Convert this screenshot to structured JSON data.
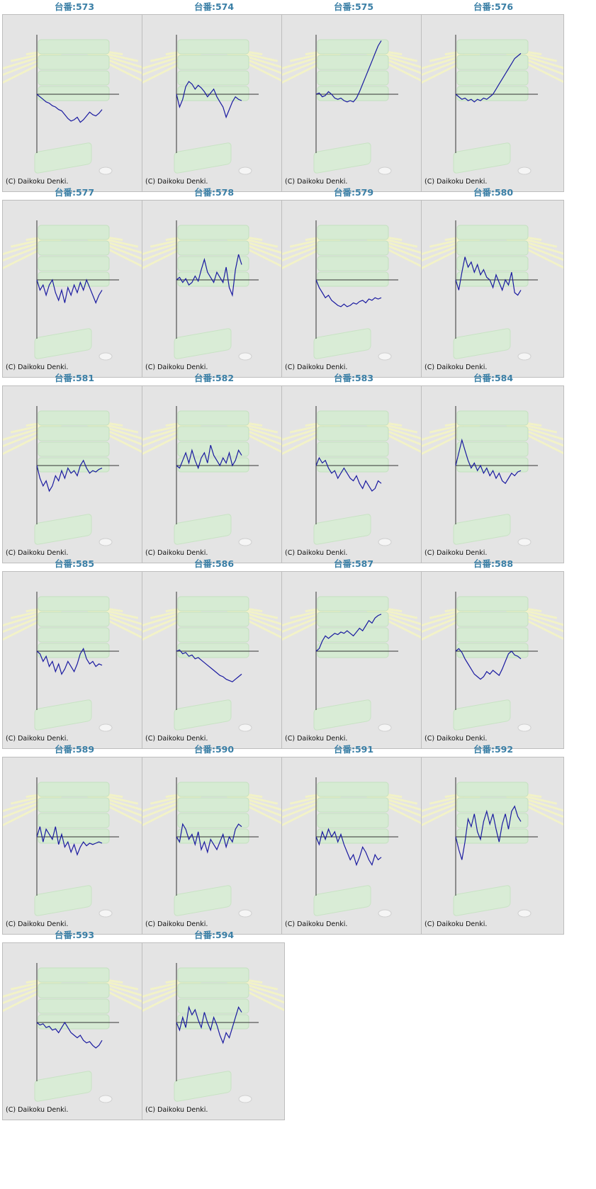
{
  "copyright": "(C) Daikoku Denki.",
  "colors": {
    "title": "#3a7fa6",
    "line": "#1a1aa0",
    "axis": "#333333",
    "panel_bg": "#e4e4e4"
  },
  "chart_data": [
    {
      "type": "line",
      "title": "台番:573",
      "y": [
        0,
        -0.1,
        -0.2,
        -0.3,
        -0.35,
        -0.45,
        -0.5,
        -0.6,
        -0.65,
        -0.8,
        -0.95,
        -1.05,
        -1.0,
        -0.9,
        -1.1,
        -1.0,
        -0.85,
        -0.7,
        -0.8,
        -0.85,
        -0.75,
        -0.6
      ]
    },
    {
      "type": "line",
      "title": "台番:574",
      "y": [
        0,
        -0.5,
        -0.2,
        0.3,
        0.5,
        0.4,
        0.2,
        0.35,
        0.25,
        0.1,
        -0.1,
        0.05,
        0.2,
        -0.1,
        -0.3,
        -0.5,
        -0.9,
        -0.6,
        -0.3,
        -0.1,
        -0.2,
        -0.25
      ]
    },
    {
      "type": "line",
      "title": "台番:575",
      "y": [
        0,
        0.05,
        -0.1,
        -0.05,
        0.1,
        0.0,
        -0.15,
        -0.2,
        -0.15,
        -0.25,
        -0.3,
        -0.25,
        -0.3,
        -0.15,
        0.1,
        0.4,
        0.7,
        1.0,
        1.3,
        1.6,
        1.9,
        2.1
      ]
    },
    {
      "type": "line",
      "title": "台番:576",
      "y": [
        0,
        -0.1,
        -0.2,
        -0.15,
        -0.25,
        -0.2,
        -0.3,
        -0.2,
        -0.25,
        -0.15,
        -0.2,
        -0.1,
        0.0,
        0.2,
        0.4,
        0.6,
        0.8,
        1.0,
        1.2,
        1.4,
        1.5,
        1.6
      ]
    },
    {
      "type": "line",
      "title": "台番:577",
      "y": [
        0,
        -0.4,
        -0.2,
        -0.6,
        -0.2,
        0,
        -0.5,
        -0.8,
        -0.4,
        -0.9,
        -0.3,
        -0.6,
        -0.2,
        -0.5,
        -0.1,
        -0.4,
        0,
        -0.3,
        -0.6,
        -0.9,
        -0.6,
        -0.4
      ]
    },
    {
      "type": "line",
      "title": "台番:578",
      "y": [
        0,
        0.1,
        -0.1,
        0.05,
        -0.2,
        -0.1,
        0.15,
        -0.05,
        0.4,
        0.8,
        0.3,
        0.1,
        -0.1,
        0.3,
        0.1,
        -0.1,
        0.5,
        -0.3,
        -0.6,
        0.4,
        1.0,
        0.6
      ]
    },
    {
      "type": "line",
      "title": "台番:579",
      "y": [
        0,
        -0.3,
        -0.5,
        -0.7,
        -0.6,
        -0.8,
        -0.9,
        -1.0,
        -1.05,
        -0.95,
        -1.05,
        -1.0,
        -0.9,
        -0.95,
        -0.85,
        -0.8,
        -0.9,
        -0.75,
        -0.8,
        -0.7,
        -0.75,
        -0.7
      ]
    },
    {
      "type": "line",
      "title": "台番:580",
      "y": [
        0,
        -0.4,
        0.3,
        0.9,
        0.5,
        0.7,
        0.3,
        0.6,
        0.2,
        0.4,
        0.1,
        0,
        -0.3,
        0.2,
        -0.1,
        -0.4,
        0,
        -0.2,
        0.3,
        -0.5,
        -0.6,
        -0.4
      ]
    },
    {
      "type": "line",
      "title": "台番:581",
      "y": [
        0,
        -0.5,
        -0.8,
        -0.6,
        -1.0,
        -0.8,
        -0.4,
        -0.6,
        -0.2,
        -0.5,
        -0.1,
        -0.3,
        -0.2,
        -0.4,
        0.0,
        0.2,
        -0.1,
        -0.3,
        -0.2,
        -0.25,
        -0.15,
        -0.1
      ]
    },
    {
      "type": "line",
      "title": "台番:582",
      "y": [
        0,
        -0.1,
        0.2,
        0.5,
        0.1,
        0.6,
        0.2,
        -0.1,
        0.3,
        0.5,
        0.1,
        0.8,
        0.4,
        0.2,
        0.0,
        0.3,
        0.1,
        0.5,
        0.0,
        0.2,
        0.6,
        0.4
      ]
    },
    {
      "type": "line",
      "title": "台番:583",
      "y": [
        0,
        0.3,
        0.1,
        0.2,
        -0.1,
        -0.3,
        -0.2,
        -0.5,
        -0.3,
        -0.1,
        -0.3,
        -0.5,
        -0.6,
        -0.4,
        -0.7,
        -0.9,
        -0.6,
        -0.8,
        -1.0,
        -0.9,
        -0.6,
        -0.7
      ]
    },
    {
      "type": "line",
      "title": "台番:584",
      "y": [
        0,
        0.5,
        1.0,
        0.6,
        0.2,
        -0.1,
        0.1,
        -0.2,
        0.0,
        -0.3,
        -0.1,
        -0.4,
        -0.2,
        -0.5,
        -0.3,
        -0.6,
        -0.7,
        -0.5,
        -0.3,
        -0.4,
        -0.25,
        -0.2
      ]
    },
    {
      "type": "line",
      "title": "台番:585",
      "y": [
        0,
        -0.1,
        -0.4,
        -0.2,
        -0.6,
        -0.4,
        -0.8,
        -0.5,
        -0.9,
        -0.7,
        -0.4,
        -0.6,
        -0.8,
        -0.5,
        -0.1,
        0.1,
        -0.3,
        -0.5,
        -0.4,
        -0.6,
        -0.5,
        -0.55
      ]
    },
    {
      "type": "line",
      "title": "台番:586",
      "y": [
        0,
        0.05,
        -0.1,
        -0.05,
        -0.2,
        -0.15,
        -0.3,
        -0.25,
        -0.35,
        -0.45,
        -0.55,
        -0.65,
        -0.75,
        -0.85,
        -0.95,
        -1.0,
        -1.1,
        -1.15,
        -1.2,
        -1.1,
        -1.0,
        -0.9
      ]
    },
    {
      "type": "line",
      "title": "台番:587",
      "y": [
        0,
        0.1,
        0.4,
        0.6,
        0.5,
        0.6,
        0.7,
        0.65,
        0.75,
        0.7,
        0.8,
        0.7,
        0.6,
        0.75,
        0.9,
        0.8,
        1.0,
        1.2,
        1.1,
        1.3,
        1.4,
        1.45
      ]
    },
    {
      "type": "line",
      "title": "台番:588",
      "y": [
        0,
        0.1,
        -0.05,
        -0.3,
        -0.5,
        -0.7,
        -0.9,
        -1.0,
        -1.1,
        -1.0,
        -0.8,
        -0.9,
        -0.75,
        -0.85,
        -0.95,
        -0.7,
        -0.4,
        -0.1,
        0.0,
        -0.15,
        -0.2,
        -0.3
      ]
    },
    {
      "type": "line",
      "title": "台番:589",
      "y": [
        0,
        0.4,
        -0.2,
        0.3,
        0.1,
        -0.1,
        0.4,
        -0.3,
        0.1,
        -0.4,
        -0.2,
        -0.6,
        -0.3,
        -0.7,
        -0.4,
        -0.2,
        -0.35,
        -0.25,
        -0.3,
        -0.25,
        -0.2,
        -0.25
      ]
    },
    {
      "type": "line",
      "title": "台番:590",
      "y": [
        0,
        -0.2,
        0.5,
        0.3,
        -0.1,
        0.1,
        -0.3,
        0.2,
        -0.5,
        -0.2,
        -0.6,
        -0.1,
        -0.3,
        -0.5,
        -0.2,
        0.1,
        -0.4,
        0.0,
        -0.2,
        0.3,
        0.5,
        0.4
      ]
    },
    {
      "type": "line",
      "title": "台番:591",
      "y": [
        0,
        -0.3,
        0.2,
        -0.1,
        0.3,
        0.0,
        0.2,
        -0.2,
        0.1,
        -0.3,
        -0.6,
        -0.9,
        -0.7,
        -1.1,
        -0.8,
        -0.4,
        -0.6,
        -0.9,
        -1.1,
        -0.7,
        -0.9,
        -0.8
      ]
    },
    {
      "type": "line",
      "title": "台番:592",
      "y": [
        0,
        -0.5,
        -0.9,
        -0.2,
        0.7,
        0.4,
        0.9,
        0.2,
        -0.1,
        0.6,
        1.0,
        0.5,
        0.9,
        0.3,
        -0.2,
        0.5,
        0.9,
        0.3,
        1.0,
        1.2,
        0.8,
        0.6
      ]
    },
    {
      "type": "line",
      "title": "台番:593",
      "y": [
        0,
        -0.1,
        -0.05,
        -0.2,
        -0.15,
        -0.3,
        -0.25,
        -0.4,
        -0.2,
        0.0,
        -0.2,
        -0.4,
        -0.5,
        -0.6,
        -0.5,
        -0.7,
        -0.8,
        -0.75,
        -0.9,
        -1.0,
        -0.9,
        -0.7
      ]
    },
    {
      "type": "line",
      "title": "台番:594",
      "y": [
        0,
        -0.3,
        0.2,
        -0.2,
        0.6,
        0.3,
        0.5,
        0.1,
        -0.2,
        0.4,
        0.0,
        -0.3,
        0.2,
        -0.1,
        -0.5,
        -0.8,
        -0.4,
        -0.6,
        -0.2,
        0.2,
        0.6,
        0.4
      ]
    }
  ]
}
